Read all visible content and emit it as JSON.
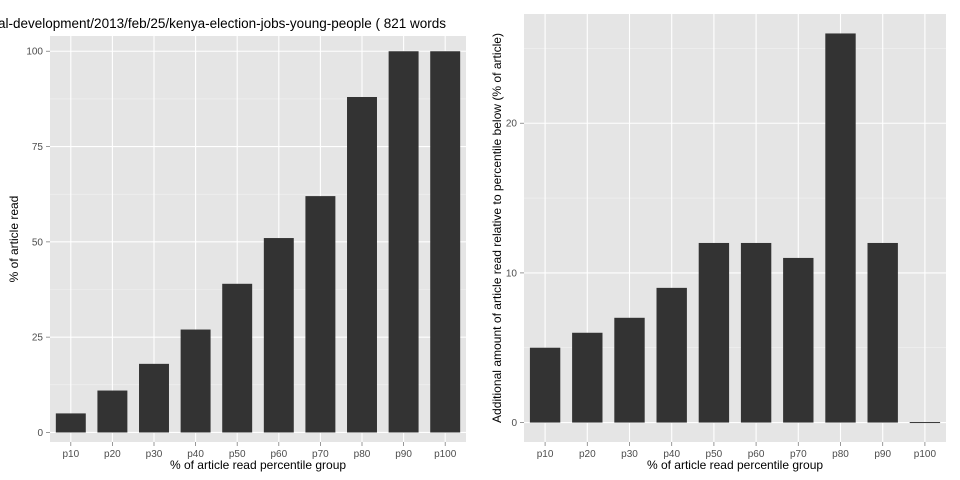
{
  "colors": {
    "panel_background": "#e5e5e5",
    "major_grid": "#ffffff",
    "minor_grid": "#f2f2f2",
    "bar_fill": "#333333",
    "tick_text": "#4d4d4d",
    "title_text": "#000000"
  },
  "chart_data": [
    {
      "type": "bar",
      "title": "al-development/2013/feb/25/kenya-election-jobs-young-people ( 821 words",
      "xlabel": "% of article read percentile group",
      "ylabel": "% of article read",
      "categories": [
        "p10",
        "p20",
        "p30",
        "p40",
        "p50",
        "p60",
        "p70",
        "p80",
        "p90",
        "p100"
      ],
      "values": [
        5,
        11,
        18,
        27,
        39,
        51,
        62,
        88,
        100,
        100
      ],
      "ylim": [
        -2.5,
        104
      ],
      "yticks": [
        0,
        25,
        50,
        75,
        100
      ],
      "grid": true,
      "legend": "none"
    },
    {
      "type": "bar",
      "title": "",
      "xlabel": "% of article read percentile group",
      "ylabel": "Additional amount of article read relative to percentile below (% of article)",
      "categories": [
        "p10",
        "p20",
        "p30",
        "p40",
        "p50",
        "p60",
        "p70",
        "p80",
        "p90",
        "p100"
      ],
      "values": [
        5,
        6,
        7,
        9,
        12,
        12,
        11,
        26,
        12,
        0
      ],
      "ylim": [
        -1.3,
        27.3
      ],
      "yticks": [
        0,
        10,
        20
      ],
      "grid": true,
      "legend": "none"
    }
  ]
}
